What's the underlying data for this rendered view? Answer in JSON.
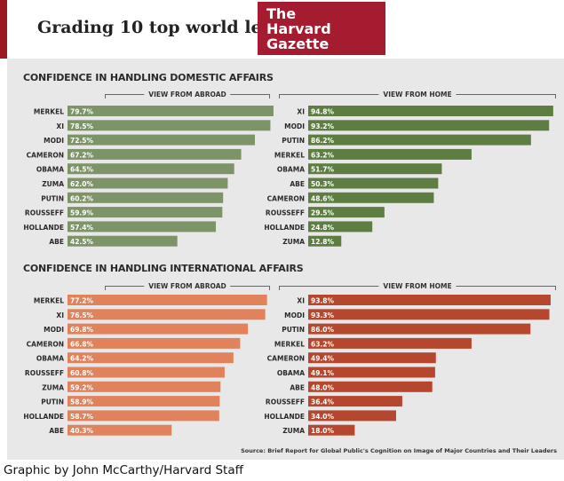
{
  "header": {
    "headline": "Grading 10 top world leaders",
    "logo_lines": [
      "The",
      "Harvard",
      "Gazette"
    ]
  },
  "sections": {
    "domestic_title": "CONFIDENCE IN HANDLING DOMESTIC AFFAIRS",
    "international_title": "CONFIDENCE IN HANDLING INTERNATIONAL AFFAIRS"
  },
  "source_note": "Source: Brief Report for Global Public's Cognition on Image of Major Countries and Their Leaders",
  "credit": "Graphic by John McCarthy/Harvard Staff",
  "colors": {
    "domestic_bar": "#7d9468",
    "international_abroad_bar": "#e0825c",
    "international_home_bar": "#b5472e",
    "brand_red": "#a51c30"
  },
  "chart_data": [
    {
      "type": "bar",
      "orientation": "horizontal",
      "section": "CONFIDENCE IN HANDLING DOMESTIC AFFAIRS",
      "panel_title": "VIEW FROM ABROAD",
      "unit": "%",
      "xlim": [
        0,
        100
      ],
      "categories": [
        "MERKEL",
        "XI",
        "MODI",
        "CAMERON",
        "OBAMA",
        "ZUMA",
        "PUTIN",
        "ROUSSEFF",
        "HOLLANDE",
        "ABE"
      ],
      "values": [
        79.7,
        78.5,
        72.5,
        67.2,
        64.5,
        62.0,
        60.2,
        59.9,
        57.4,
        42.5
      ],
      "data_labels": [
        "79.7%",
        "78.5%",
        "72.5%",
        "67.2%",
        "64.5%",
        "62.0%",
        "60.2%",
        "59.9%",
        "57.4%",
        "42.5%"
      ],
      "color": "#7d9468"
    },
    {
      "type": "bar",
      "orientation": "horizontal",
      "section": "CONFIDENCE IN HANDLING DOMESTIC AFFAIRS",
      "panel_title": "VIEW FROM HOME",
      "unit": "%",
      "xlim": [
        0,
        100
      ],
      "categories": [
        "XI",
        "MODI",
        "PUTIN",
        "MERKEL",
        "OBAMA",
        "ABE",
        "CAMERON",
        "ROUSSEFF",
        "HOLLANDE",
        "ZUMA"
      ],
      "values": [
        94.8,
        93.2,
        86.2,
        63.2,
        51.7,
        50.3,
        48.6,
        29.5,
        24.8,
        12.8
      ],
      "data_labels": [
        "94.8%",
        "93.2%",
        "86.2%",
        "63.2%",
        "51.7%",
        "50.3%",
        "48.6%",
        "29.5%",
        "24.8%",
        "12.8%"
      ],
      "color": "#5e7d42"
    },
    {
      "type": "bar",
      "orientation": "horizontal",
      "section": "CONFIDENCE IN HANDLING INTERNATIONAL AFFAIRS",
      "panel_title": "VIEW FROM ABROAD",
      "unit": "%",
      "xlim": [
        0,
        100
      ],
      "categories": [
        "MERKEL",
        "XI",
        "MODI",
        "CAMERON",
        "OBAMA",
        "ROUSSEFF",
        "ZUMA",
        "PUTIN",
        "HOLLANDE",
        "ABE"
      ],
      "values": [
        77.2,
        76.5,
        69.8,
        66.8,
        64.2,
        60.8,
        59.2,
        58.9,
        58.7,
        40.3
      ],
      "data_labels": [
        "77.2%",
        "76.5%",
        "69.8%",
        "66.8%",
        "64.2%",
        "60.8%",
        "59.2%",
        "58.9%",
        "58.7%",
        "40.3%"
      ],
      "color": "#e0825c"
    },
    {
      "type": "bar",
      "orientation": "horizontal",
      "section": "CONFIDENCE IN HANDLING INTERNATIONAL AFFAIRS",
      "panel_title": "VIEW FROM HOME",
      "unit": "%",
      "xlim": [
        0,
        100
      ],
      "categories": [
        "XI",
        "MODI",
        "PUTIN",
        "MERKEL",
        "CAMERON",
        "OBAMA",
        "ABE",
        "ROUSSEFF",
        "HOLLANDE",
        "ZUMA"
      ],
      "values": [
        93.8,
        93.3,
        86.0,
        63.2,
        49.4,
        49.1,
        48.0,
        36.4,
        34.0,
        18.0
      ],
      "data_labels": [
        "93.8%",
        "93.3%",
        "86.0%",
        "63.2%",
        "49.4%",
        "49.1%",
        "48.0%",
        "36.4%",
        "34.0%",
        "18.0%"
      ],
      "color": "#b5472e"
    }
  ]
}
